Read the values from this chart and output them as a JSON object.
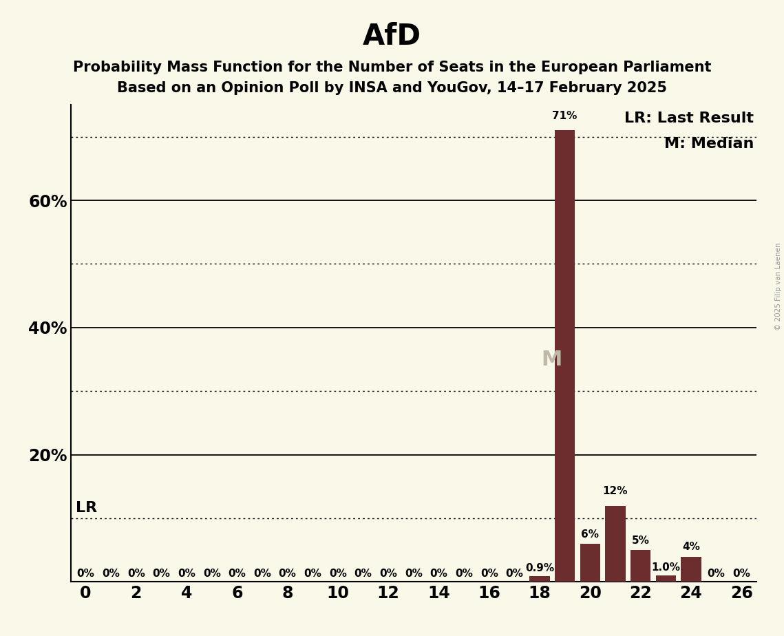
{
  "title": "AfD",
  "subtitle1": "Probability Mass Function for the Number of Seats in the European Parliament",
  "subtitle2": "Based on an Opinion Poll by INSA and YouGov, 14–17 February 2025",
  "copyright": "© 2025 Filip van Laenen",
  "bar_color": "#6b2d2d",
  "background_color": "#faf8e8",
  "seats": [
    0,
    1,
    2,
    3,
    4,
    5,
    6,
    7,
    8,
    9,
    10,
    11,
    12,
    13,
    14,
    15,
    16,
    17,
    18,
    19,
    20,
    21,
    22,
    23,
    24,
    25,
    26
  ],
  "probabilities": [
    0.0,
    0.0,
    0.0,
    0.0,
    0.0,
    0.0,
    0.0,
    0.0,
    0.0,
    0.0,
    0.0,
    0.0,
    0.0,
    0.0,
    0.0,
    0.0,
    0.0,
    0.0,
    0.9,
    71.0,
    6.0,
    12.0,
    5.0,
    1.0,
    4.0,
    0.0,
    0.0
  ],
  "bar_labels": [
    "0%",
    "0%",
    "0%",
    "0%",
    "0%",
    "0%",
    "0%",
    "0%",
    "0%",
    "0%",
    "0%",
    "0%",
    "0%",
    "0%",
    "0%",
    "0%",
    "0%",
    "0%",
    "0.9%",
    "71%",
    "6%",
    "12%",
    "5%",
    "1.0%",
    "4%",
    "0%",
    "0%"
  ],
  "median_seat": 19,
  "last_result_seat": 0,
  "xlim": [
    -0.6,
    26.6
  ],
  "ylim": [
    0,
    75
  ],
  "solid_yticks": [
    20,
    40,
    60
  ],
  "dotted_yticks": [
    10,
    30,
    50,
    70
  ],
  "lr_y": 10,
  "ytick_positions": [
    20,
    40,
    60
  ],
  "ytick_labels": [
    "20%",
    "40%",
    "60%"
  ],
  "xticks": [
    0,
    2,
    4,
    6,
    8,
    10,
    12,
    14,
    16,
    18,
    20,
    22,
    24,
    26
  ],
  "legend_lr": "LR: Last Result",
  "legend_m": "M: Median",
  "title_fontsize": 30,
  "subtitle_fontsize": 15,
  "axis_label_fontsize": 17,
  "bar_label_fontsize": 11,
  "legend_fontsize": 16,
  "lr_label_fontsize": 16,
  "m_label_fontsize": 22
}
